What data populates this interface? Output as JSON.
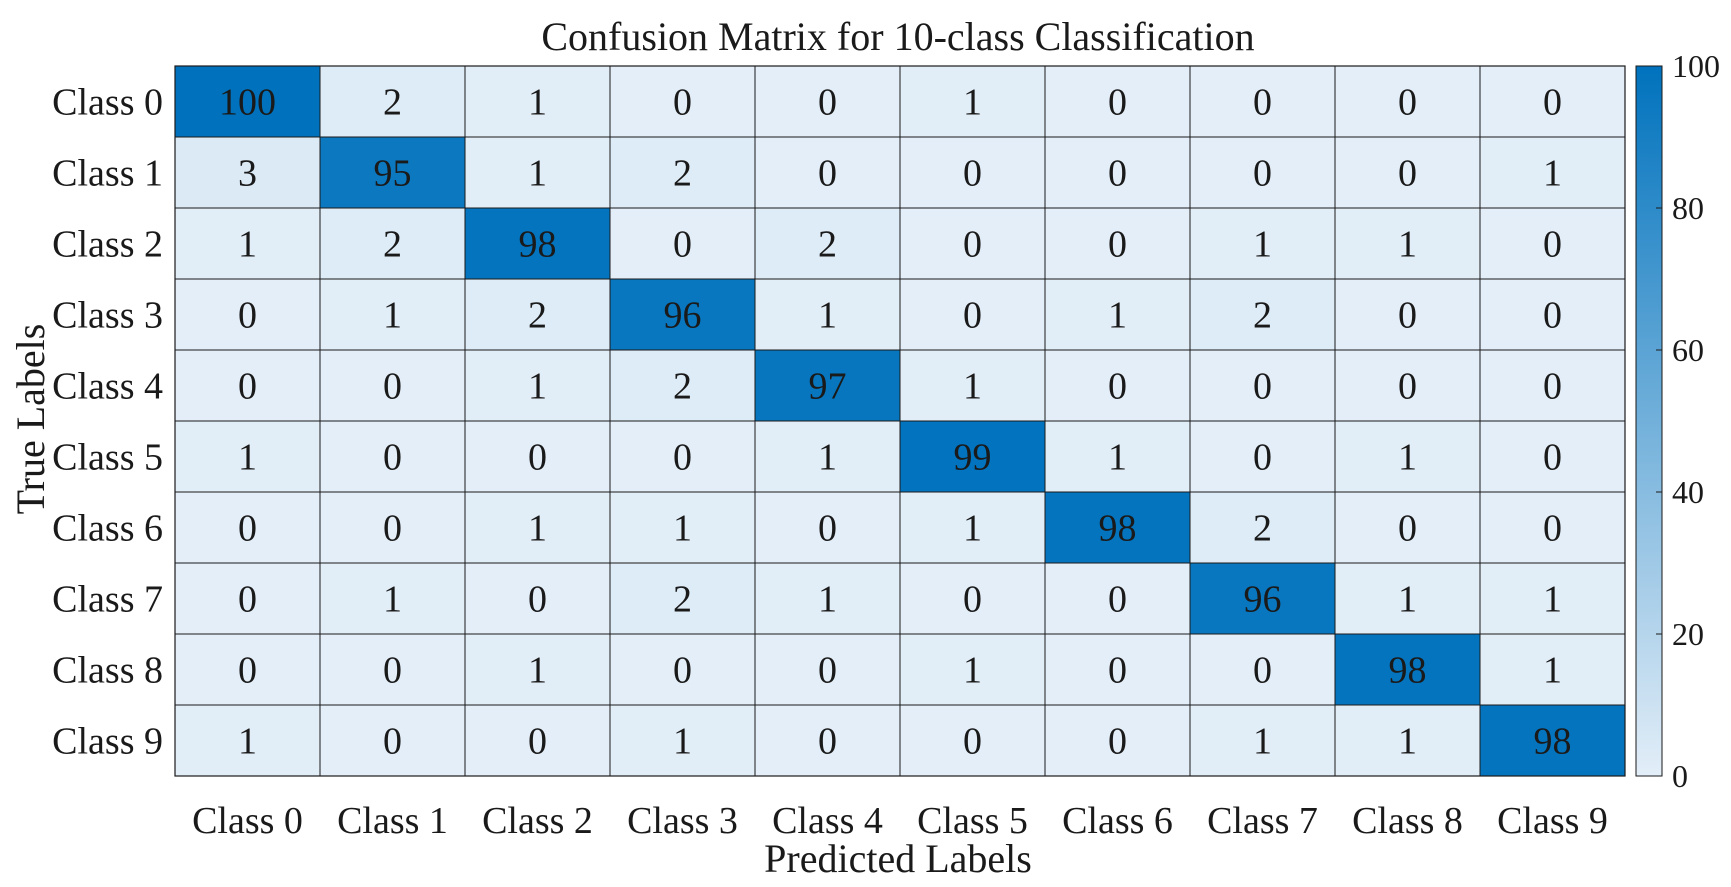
{
  "chart_data": {
    "type": "heatmap",
    "title": "Confusion Matrix for 10-class Classification",
    "xlabel": "Predicted Labels",
    "ylabel": "True Labels",
    "x_categories": [
      "Class 0",
      "Class 1",
      "Class 2",
      "Class 3",
      "Class 4",
      "Class 5",
      "Class 6",
      "Class 7",
      "Class 8",
      "Class 9"
    ],
    "y_categories": [
      "Class 0",
      "Class 1",
      "Class 2",
      "Class 3",
      "Class 4",
      "Class 5",
      "Class 6",
      "Class 7",
      "Class 8",
      "Class 9"
    ],
    "values": [
      [
        100,
        2,
        1,
        0,
        0,
        1,
        0,
        0,
        0,
        0
      ],
      [
        3,
        95,
        1,
        2,
        0,
        0,
        0,
        0,
        0,
        1
      ],
      [
        1,
        2,
        98,
        0,
        2,
        0,
        0,
        1,
        1,
        0
      ],
      [
        0,
        1,
        2,
        96,
        1,
        0,
        1,
        2,
        0,
        0
      ],
      [
        0,
        0,
        1,
        2,
        97,
        1,
        0,
        0,
        0,
        0
      ],
      [
        1,
        0,
        0,
        0,
        1,
        99,
        1,
        0,
        1,
        0
      ],
      [
        0,
        0,
        1,
        1,
        0,
        1,
        98,
        2,
        0,
        0
      ],
      [
        0,
        1,
        0,
        2,
        1,
        0,
        0,
        96,
        1,
        1
      ],
      [
        0,
        0,
        1,
        0,
        0,
        1,
        0,
        0,
        98,
        1
      ],
      [
        1,
        0,
        0,
        1,
        0,
        0,
        0,
        1,
        1,
        98
      ]
    ],
    "colorbar": {
      "range": [
        0,
        100
      ],
      "ticks": [
        0,
        20,
        40,
        60,
        80,
        100
      ],
      "color_low": "#e3eef8",
      "color_high": "#0072bd"
    },
    "grid": true,
    "cell_labels": true
  }
}
